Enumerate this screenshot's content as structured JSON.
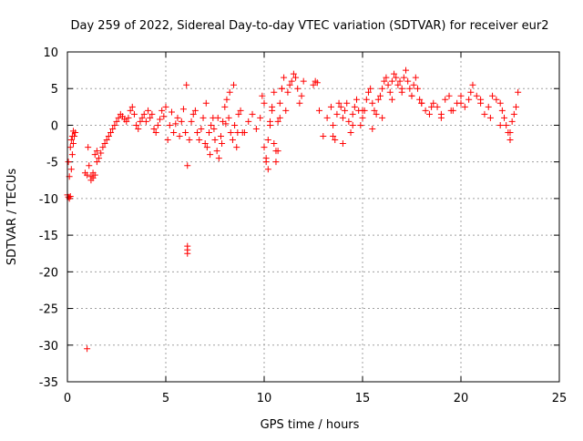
{
  "chart_data": {
    "type": "scatter",
    "title": "Day 259 of 2022, Sidereal Day-to-day VTEC variation (SDTVAR) for receiver eur2",
    "xlabel": "GPS time / hours",
    "ylabel": "SDTVAR / TECUs",
    "xlim": [
      0,
      25
    ],
    "ylim": [
      -35,
      10
    ],
    "xticks": [
      0,
      5,
      10,
      15,
      20,
      25
    ],
    "yticks": [
      10,
      5,
      0,
      -5,
      -10,
      -15,
      -20,
      -25,
      -30,
      -35
    ],
    "grid": true,
    "marker": "+",
    "color": "#ff0000",
    "series": [
      {
        "name": "SDTVAR",
        "x": [
          0.0,
          0.05,
          0.1,
          0.15,
          0.2,
          0.25,
          0.3,
          0.35,
          0.4,
          0.05,
          0.1,
          0.15,
          0.2,
          0.25,
          0.3,
          1.0,
          0.9,
          1.0,
          1.05,
          1.1,
          1.2,
          1.3,
          1.4,
          1.5,
          1.2,
          1.3,
          1.4,
          1.5,
          1.6,
          1.7,
          1.8,
          1.9,
          2.0,
          2.1,
          2.2,
          2.3,
          2.4,
          2.5,
          2.6,
          2.7,
          2.8,
          2.9,
          3.0,
          3.1,
          3.2,
          3.3,
          3.4,
          3.5,
          3.6,
          3.7,
          3.8,
          3.9,
          4.0,
          4.2,
          4.4,
          4.6,
          4.8,
          5.0,
          5.2,
          5.4,
          5.6,
          5.8,
          4.1,
          4.3,
          4.5,
          4.7,
          4.9,
          5.1,
          5.3,
          5.5,
          5.7,
          5.9,
          6.0,
          6.05,
          6.1,
          6.1,
          6.1,
          6.1,
          6.2,
          6.3,
          6.4,
          6.5,
          6.6,
          6.7,
          6.8,
          6.9,
          7.0,
          7.1,
          7.2,
          7.3,
          7.4,
          7.5,
          7.6,
          7.7,
          7.8,
          7.9,
          8.0,
          8.1,
          8.2,
          8.3,
          8.4,
          8.5,
          8.6,
          8.7,
          8.8,
          8.9,
          7.05,
          7.25,
          7.45,
          7.65,
          7.85,
          8.05,
          8.25,
          8.45,
          8.65,
          9.0,
          9.2,
          9.4,
          9.6,
          9.8,
          10.0,
          10.1,
          10.2,
          10.3,
          10.4,
          10.5,
          10.6,
          10.7,
          10.8,
          10.9,
          11.0,
          9.9,
          10.0,
          10.1,
          10.2,
          10.3,
          10.4,
          10.5,
          10.6,
          10.7,
          10.8,
          10.9,
          11.1,
          11.2,
          11.3,
          11.4,
          11.5,
          11.6,
          11.7,
          11.8,
          11.9,
          12.0,
          12.5,
          12.6,
          12.7,
          12.8,
          13.0,
          13.2,
          13.4,
          13.5,
          13.6,
          13.7,
          13.8,
          13.9,
          14.0,
          14.1,
          14.2,
          14.3,
          14.4,
          14.5,
          14.6,
          14.7,
          14.8,
          14.9,
          15.0,
          15.1,
          15.2,
          15.3,
          15.4,
          15.5,
          15.6,
          15.7,
          15.8,
          15.9,
          16.0,
          16.1,
          16.2,
          16.3,
          16.4,
          16.5,
          16.6,
          16.7,
          16.8,
          16.9,
          17.0,
          17.1,
          17.2,
          17.3,
          17.4,
          17.5,
          17.6,
          17.7,
          17.8,
          17.9,
          18.0,
          18.2,
          18.4,
          18.6,
          18.8,
          19.0,
          19.2,
          19.4,
          19.6,
          19.8,
          20.0,
          20.2,
          20.4,
          20.6,
          20.8,
          21.0,
          21.2,
          21.4,
          21.6,
          21.8,
          22.0,
          22.1,
          22.2,
          22.3,
          22.4,
          22.5,
          22.6,
          22.7,
          22.8,
          22.9,
          13.5,
          14.0,
          14.5,
          15.0,
          15.5,
          16.0,
          16.5,
          17.0,
          17.5,
          18.0,
          18.5,
          19.0,
          19.5,
          20.0,
          20.5,
          21.0,
          21.5,
          22.0,
          22.5
        ],
        "y": [
          -9.5,
          -9.8,
          -10.0,
          -9.7,
          -6.0,
          -4.0,
          -2.5,
          -1.5,
          -1.0,
          -5.0,
          -7.0,
          -3.0,
          -2.0,
          -1.5,
          -0.8,
          -30.5,
          -6.5,
          -6.8,
          -3.0,
          -5.5,
          -7.0,
          -6.5,
          -4.0,
          -3.5,
          -7.5,
          -7.2,
          -6.8,
          -5.0,
          -4.5,
          -3.8,
          -3.0,
          -2.5,
          -2.0,
          -1.5,
          -1.0,
          -0.5,
          0.0,
          0.5,
          1.0,
          1.5,
          1.2,
          0.8,
          0.5,
          1.0,
          2.0,
          2.5,
          1.5,
          0.0,
          -0.5,
          0.5,
          1.0,
          1.5,
          0.5,
          1.0,
          -0.5,
          0.0,
          2.0,
          2.5,
          0.0,
          -1.0,
          1.0,
          0.5,
          2.0,
          1.5,
          -1.0,
          0.8,
          1.2,
          -2.0,
          1.8,
          0.2,
          -1.5,
          2.2,
          -1.0,
          5.5,
          -16.5,
          -17.0,
          -17.5,
          -5.5,
          -2.0,
          0.5,
          1.5,
          2.0,
          -1.0,
          -2.0,
          -0.5,
          1.0,
          -2.5,
          -3.0,
          -1.0,
          0.0,
          1.0,
          -2.0,
          -3.5,
          -4.5,
          -1.5,
          0.5,
          2.5,
          3.5,
          1.0,
          -1.0,
          -2.0,
          0.0,
          -3.0,
          1.5,
          2.0,
          -1.0,
          3.0,
          -4.0,
          -0.5,
          1.0,
          -2.5,
          0.2,
          4.5,
          5.5,
          -1.0,
          -1.0,
          0.5,
          1.5,
          -0.5,
          1.0,
          -3.0,
          -4.5,
          -2.0,
          0.5,
          2.5,
          4.5,
          -5.0,
          -3.5,
          1.0,
          5.0,
          6.5,
          4.0,
          3.0,
          -5.0,
          -6.0,
          0.0,
          2.0,
          -2.5,
          -3.5,
          0.5,
          3.0,
          5.0,
          2.0,
          4.5,
          5.5,
          6.0,
          7.0,
          6.5,
          5.0,
          3.0,
          4.0,
          6.0,
          5.5,
          6.0,
          5.8,
          2.0,
          -1.5,
          1.0,
          2.5,
          0.0,
          -2.0,
          1.5,
          3.0,
          2.5,
          1.0,
          2.0,
          3.0,
          0.5,
          -1.0,
          1.5,
          2.5,
          3.5,
          2.0,
          0.0,
          1.0,
          2.0,
          3.5,
          4.5,
          5.0,
          3.0,
          2.0,
          1.5,
          3.5,
          4.0,
          5.0,
          6.0,
          6.5,
          5.5,
          4.5,
          6.0,
          7.0,
          6.5,
          5.5,
          6.0,
          5.0,
          6.5,
          7.5,
          6.0,
          5.0,
          4.0,
          5.5,
          6.5,
          5.0,
          3.5,
          3.0,
          2.0,
          1.5,
          3.0,
          2.5,
          1.0,
          3.5,
          4.0,
          2.0,
          3.0,
          4.0,
          2.5,
          3.5,
          5.5,
          4.0,
          3.0,
          1.5,
          2.5,
          4.0,
          3.5,
          3.0,
          2.0,
          1.0,
          0.0,
          -1.0,
          -2.0,
          0.5,
          1.5,
          2.5,
          4.5,
          -1.5,
          -2.5,
          0.0,
          2.0,
          -0.5,
          1.0,
          3.5,
          4.5,
          4.0,
          3.0,
          2.5,
          1.5,
          2.0,
          3.0,
          4.5,
          3.5,
          1.0,
          0.0,
          -1.0
        ]
      }
    ]
  }
}
